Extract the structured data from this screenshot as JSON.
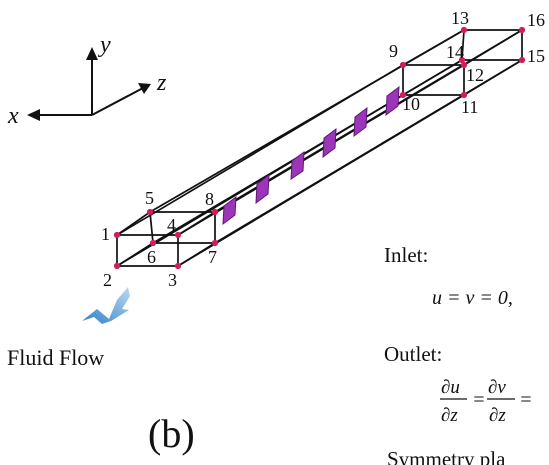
{
  "diagram": {
    "axes": {
      "x": "x",
      "y": "y",
      "z": "z"
    },
    "node_labels": [
      "1",
      "2",
      "3",
      "4",
      "5",
      "6",
      "7",
      "8",
      "9",
      "10",
      "11",
      "12",
      "13",
      "14",
      "15",
      "16"
    ],
    "flow_label": "Fluid Flow",
    "panel_label": "(b)",
    "boundary_conditions": {
      "inlet_title": "Inlet:",
      "inlet_eq": "u = v = 0,",
      "outlet_title": "Outlet:",
      "outlet_num_1": "∂u",
      "outlet_den_1": "∂z",
      "outlet_eq_1": "=",
      "outlet_num_2": "∂v",
      "outlet_den_2": "∂z",
      "outlet_eq_2": "=",
      "symmetry_title": "Symmetry pla"
    },
    "colors": {
      "line": "#111111",
      "node": "#d51c54",
      "plane": "#9b36b8",
      "plane_edge": "#5c1870",
      "arrow_top": "#2f7ec8",
      "arrow_bottom": "#bad9f2"
    }
  }
}
